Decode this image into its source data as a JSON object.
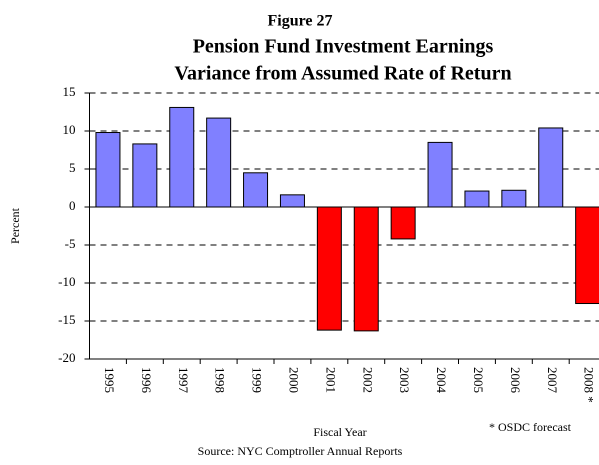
{
  "chart_data": {
    "type": "bar",
    "figure_label": "Figure 27",
    "title": "Pension Fund Investment Earnings",
    "subtitle": "Variance from Assumed Rate of Return",
    "y_label": "Percent",
    "x_label": "Fiscal Year",
    "note": "* OSDC forecast",
    "source": "Source: NYC Comptroller Annual Reports",
    "categories": [
      "1995",
      "1996",
      "1997",
      "1998",
      "1999",
      "2000",
      "2001",
      "2002",
      "2003",
      "2004",
      "2005",
      "2006",
      "2007",
      "2008 *"
    ],
    "values": [
      9.8,
      8.3,
      13.1,
      11.7,
      4.5,
      1.6,
      -16.2,
      -16.3,
      -4.2,
      8.5,
      2.1,
      2.2,
      10.4,
      -12.7
    ],
    "color": "#8080ff",
    "negative_color": "#ff0000",
    "ylim": [
      -20,
      15
    ],
    "yticks": [
      -20,
      -15,
      -10,
      -5,
      0,
      5,
      10,
      15
    ],
    "grid": true
  }
}
